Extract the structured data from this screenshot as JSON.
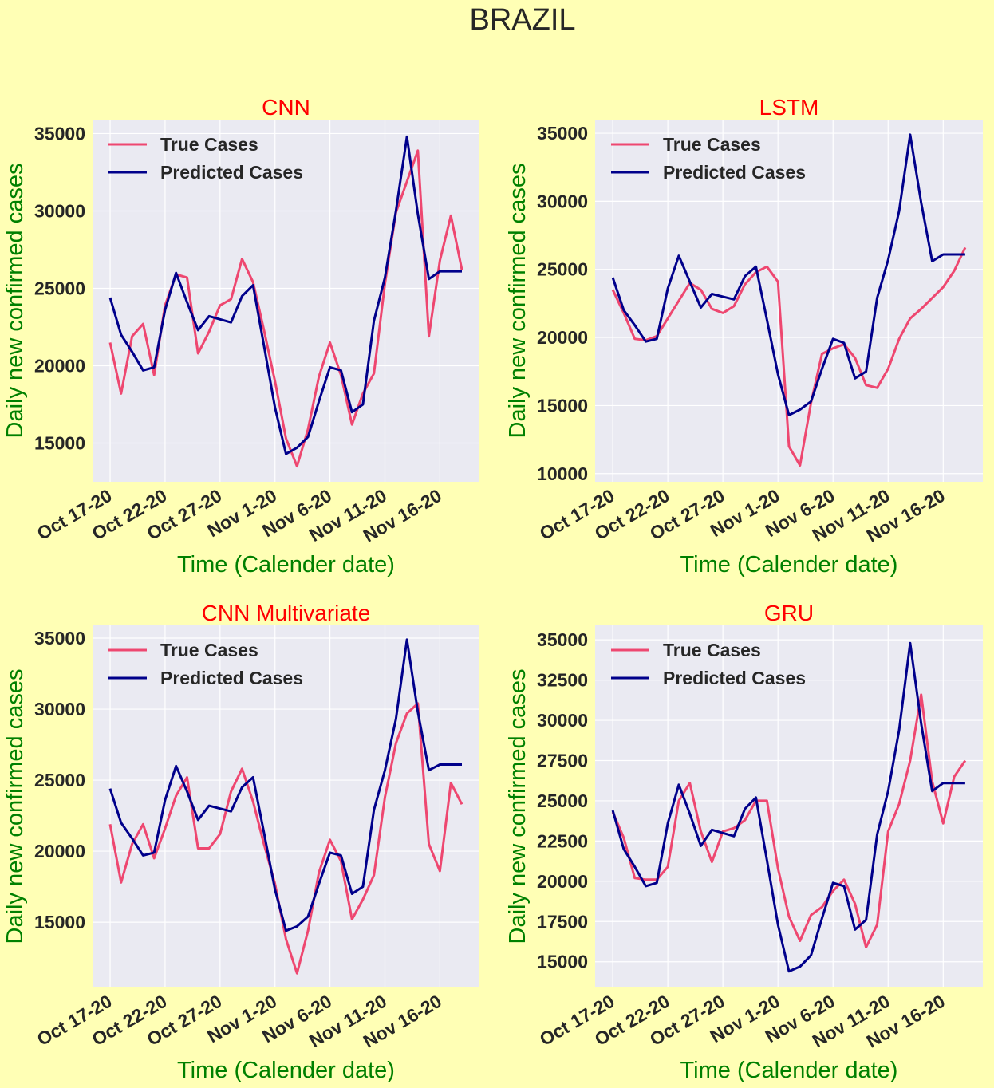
{
  "figure": {
    "title": "BRAZIL",
    "background": "#ffffb5",
    "plot_background": "#eaeaf2",
    "title_color": "#ff0000",
    "label_color": "#008000",
    "true_color": "#ee4770",
    "pred_color": "#00008b"
  },
  "chart_data": [
    {
      "type": "line",
      "title": "CNN",
      "xlabel": "Time (Calender date)",
      "ylabel": "Daily new confirmed cases",
      "x_ticks": [
        "Oct 17-20",
        "Oct 22-20",
        "Oct 27-20",
        "Nov 1-20",
        "Nov 6-20",
        "Nov 11-20",
        "Nov 16-20"
      ],
      "x_range": [
        -1.6,
        33.6
      ],
      "ylim": [
        12500,
        35900
      ],
      "y_ticks": [
        15000,
        20000,
        25000,
        30000,
        35000
      ],
      "y_tick_labels": [
        "15000",
        "20000",
        "25000",
        "30000",
        "35000"
      ],
      "legend": "top-left",
      "grid": true,
      "series": [
        {
          "name": "True Cases",
          "values": [
            21500,
            18200,
            21900,
            22700,
            19400,
            23900,
            25900,
            25700,
            20800,
            22200,
            23900,
            24300,
            26900,
            25400,
            22300,
            19000,
            15300,
            13500,
            15900,
            19300,
            21500,
            19400,
            16200,
            18200,
            19500,
            25300,
            29900,
            31900,
            33900,
            21900,
            26800,
            29700,
            26200
          ]
        },
        {
          "name": "Predicted Cases",
          "values": [
            24400,
            22000,
            20900,
            19700,
            19900,
            23600,
            26000,
            24100,
            22300,
            23200,
            23000,
            22800,
            24500,
            25200,
            21300,
            17300,
            14300,
            14700,
            15400,
            17700,
            19900,
            19700,
            17000,
            17500,
            22900,
            25700,
            30000,
            34800,
            29800,
            25600,
            26100,
            26100,
            26100
          ]
        }
      ]
    },
    {
      "type": "line",
      "title": "LSTM",
      "xlabel": "Time (Calender date)",
      "ylabel": "Daily new confirmed cases",
      "x_ticks": [
        "Oct 17-20",
        "Oct 22-20",
        "Oct 27-20",
        "Nov 1-20",
        "Nov 6-20",
        "Nov 11-20",
        "Nov 16-20"
      ],
      "x_range": [
        -1.6,
        33.6
      ],
      "ylim": [
        9400,
        36000
      ],
      "y_ticks": [
        10000,
        15000,
        20000,
        25000,
        30000,
        35000
      ],
      "y_tick_labels": [
        "10000",
        "15000",
        "20000",
        "25000",
        "30000",
        "35000"
      ],
      "legend": "top-left",
      "grid": true,
      "series": [
        {
          "name": "True Cases",
          "values": [
            23500,
            21800,
            19900,
            19800,
            20100,
            21400,
            22700,
            24000,
            23500,
            22100,
            21800,
            22300,
            23900,
            24800,
            25200,
            24100,
            12000,
            10600,
            15200,
            18800,
            19200,
            19500,
            18500,
            16500,
            16300,
            17700,
            19900,
            21400,
            22100,
            22900,
            23700,
            24900,
            26600
          ]
        },
        {
          "name": "Predicted Cases",
          "values": [
            24400,
            22000,
            20900,
            19700,
            19900,
            23600,
            26000,
            24100,
            22200,
            23200,
            23000,
            22800,
            24500,
            25200,
            21300,
            17300,
            14300,
            14700,
            15300,
            17700,
            19900,
            19600,
            17000,
            17500,
            22900,
            25700,
            29300,
            34900,
            29900,
            25600,
            26100,
            26100,
            26100
          ]
        }
      ]
    },
    {
      "type": "line",
      "title": "CNN Multivariate",
      "xlabel": "Time (Calender date)",
      "ylabel": "Daily new confirmed cases",
      "x_ticks": [
        "Oct 17-20",
        "Oct 22-20",
        "Oct 27-20",
        "Nov 1-20",
        "Nov 6-20",
        "Nov 11-20",
        "Nov 16-20"
      ],
      "x_range": [
        -1.6,
        33.6
      ],
      "ylim": [
        10400,
        35900
      ],
      "y_ticks": [
        15000,
        20000,
        25000,
        30000,
        35000
      ],
      "y_tick_labels": [
        "15000",
        "20000",
        "25000",
        "30000",
        "35000"
      ],
      "legend": "top-left",
      "grid": true,
      "series": [
        {
          "name": "True Cases",
          "values": [
            21900,
            17800,
            20500,
            21900,
            19500,
            21600,
            23900,
            25200,
            20200,
            20200,
            21200,
            24200,
            25800,
            23500,
            20500,
            17700,
            13800,
            11400,
            14400,
            18500,
            20800,
            19300,
            15200,
            16600,
            18300,
            23800,
            27600,
            29700,
            30400,
            20500,
            18600,
            24800,
            23300
          ]
        },
        {
          "name": "Predicted Cases",
          "values": [
            24400,
            22000,
            20900,
            19700,
            19900,
            23600,
            26000,
            24200,
            22200,
            23200,
            23000,
            22800,
            24500,
            25200,
            21300,
            17300,
            14400,
            14700,
            15400,
            17700,
            19900,
            19700,
            17000,
            17500,
            22900,
            25700,
            29300,
            34900,
            29800,
            25700,
            26100,
            26100,
            26100
          ]
        }
      ]
    },
    {
      "type": "line",
      "title": "GRU",
      "xlabel": "Time (Calender date)",
      "ylabel": "Daily new confirmed cases",
      "x_ticks": [
        "Oct 17-20",
        "Oct 22-20",
        "Oct 27-20",
        "Nov 1-20",
        "Nov 6-20",
        "Nov 11-20",
        "Nov 16-20"
      ],
      "x_range": [
        -1.6,
        33.6
      ],
      "ylim": [
        13400,
        35900
      ],
      "y_ticks": [
        15000,
        17500,
        20000,
        22500,
        25000,
        27500,
        30000,
        32500,
        35000
      ],
      "y_tick_labels": [
        "15000",
        "17500",
        "20000",
        "22500",
        "25000",
        "27500",
        "30000",
        "32500",
        "35000"
      ],
      "legend": "top-left",
      "grid": true,
      "series": [
        {
          "name": "True Cases",
          "values": [
            24300,
            22700,
            20200,
            20100,
            20100,
            20900,
            25000,
            26100,
            23100,
            21200,
            23100,
            23300,
            23800,
            25000,
            25000,
            20800,
            17800,
            16300,
            17900,
            18400,
            19400,
            20100,
            18600,
            15900,
            17300,
            23100,
            24800,
            27500,
            31600,
            26200,
            23600,
            26500,
            27500
          ]
        },
        {
          "name": "Predicted Cases",
          "values": [
            24400,
            22000,
            20900,
            19700,
            19900,
            23600,
            26000,
            24200,
            22200,
            23200,
            23000,
            22800,
            24500,
            25200,
            21300,
            17300,
            14400,
            14700,
            15400,
            17700,
            19900,
            19700,
            17000,
            17600,
            22900,
            25600,
            29400,
            34800,
            29800,
            25600,
            26100,
            26100,
            26100
          ]
        }
      ]
    }
  ]
}
